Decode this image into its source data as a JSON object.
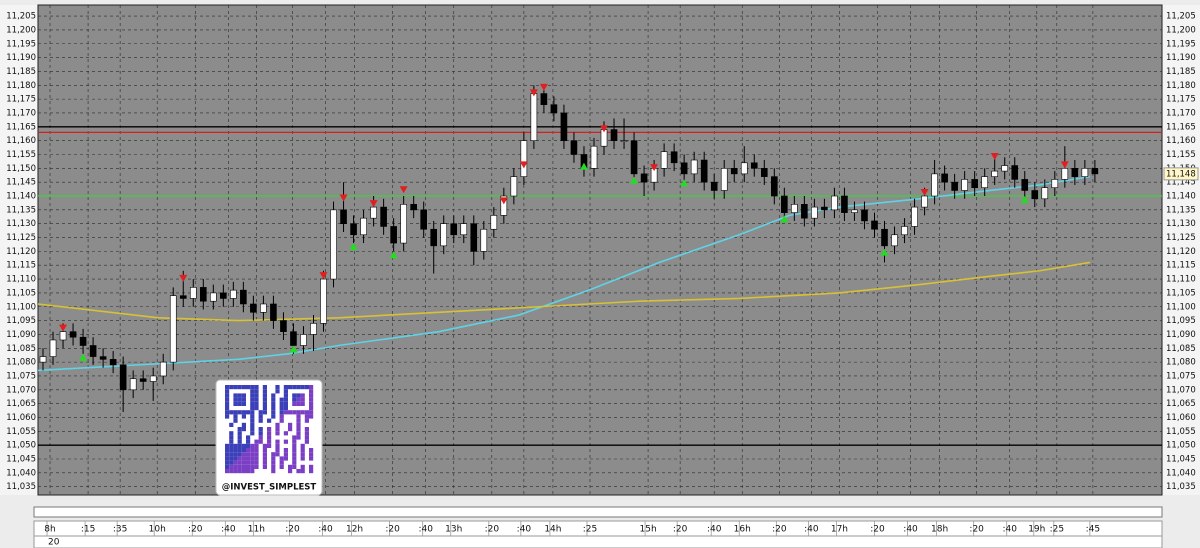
{
  "chart_data": {
    "type": "candlestick",
    "background": "#8c8c8c",
    "up_color": "#ffffff",
    "down_color": "#000000",
    "grid": true,
    "xlim": [
      0,
      112.2
    ],
    "ylim": [
      11032,
      11209
    ],
    "x": [
      0,
      1,
      2,
      3,
      4,
      5,
      6,
      7,
      8,
      9,
      10,
      11,
      12,
      13,
      14,
      15,
      16,
      17,
      18,
      19,
      20,
      21,
      22,
      23,
      24,
      25,
      26,
      27,
      28,
      29,
      30,
      31,
      32,
      33,
      34,
      35,
      36,
      37,
      38,
      39,
      40,
      41,
      42,
      43,
      44,
      45,
      46,
      47,
      48,
      49,
      50,
      51,
      52,
      53,
      54,
      55,
      56,
      57,
      58,
      59,
      60,
      61,
      62,
      63,
      64,
      65,
      66,
      67,
      68,
      69,
      70,
      71,
      72,
      73,
      74,
      75,
      76,
      77,
      78,
      79,
      80,
      81,
      82,
      83,
      84,
      85,
      86,
      87,
      88,
      89,
      90,
      91,
      92,
      93,
      94,
      95,
      96,
      97,
      98,
      99,
      100,
      101,
      102,
      103,
      104,
      105
    ],
    "open": [
      11080,
      11082,
      11088,
      11091,
      11089,
      11086,
      11082,
      11081,
      11079,
      11070,
      11074,
      11073,
      11075,
      11080,
      11104,
      11103,
      11107,
      11102,
      11105,
      11103,
      11106,
      11101,
      11098,
      11101,
      11095,
      11091,
      11086,
      11090,
      11094,
      11110,
      11135,
      11130,
      11126,
      11132,
      11136,
      11129,
      11123,
      11137,
      11135,
      11128,
      11122,
      11130,
      11126,
      11130,
      11120,
      11128,
      11133,
      11140,
      11147,
      11160,
      11177,
      11173,
      11170,
      11160,
      11155,
      11150,
      11158,
      11164,
      11160,
      11160,
      11148,
      11145,
      11150,
      11156,
      11152,
      11148,
      11153,
      11145,
      11142,
      11150,
      11148,
      11152,
      11150,
      11147,
      11140,
      11134,
      11137,
      11132,
      11136,
      11135,
      11140,
      11134,
      11135,
      11131,
      11128,
      11122,
      11126,
      11129,
      11136,
      11140,
      11148,
      11145,
      11142,
      11146,
      11143,
      11147,
      11149,
      11151,
      11146,
      11142,
      11139,
      11143,
      11146,
      11150,
      11147,
      11150
    ],
    "high": [
      11085,
      11091,
      11094,
      11094,
      11092,
      11089,
      11085,
      11084,
      11082,
      11077,
      11077,
      11078,
      11083,
      11107,
      11113,
      11110,
      11110,
      11108,
      11108,
      11109,
      11109,
      11104,
      11104,
      11104,
      11098,
      11094,
      11093,
      11097,
      11113,
      11138,
      11145,
      11133,
      11135,
      11140,
      11139,
      11132,
      11140,
      11140,
      11138,
      11131,
      11133,
      11133,
      11133,
      11133,
      11131,
      11136,
      11143,
      11150,
      11163,
      11180,
      11180,
      11176,
      11173,
      11163,
      11158,
      11161,
      11167,
      11168,
      11168,
      11163,
      11151,
      11153,
      11159,
      11159,
      11155,
      11156,
      11156,
      11148,
      11153,
      11153,
      11158,
      11155,
      11153,
      11150,
      11143,
      11140,
      11140,
      11139,
      11139,
      11143,
      11143,
      11138,
      11138,
      11134,
      11131,
      11129,
      11132,
      11139,
      11143,
      11153,
      11151,
      11148,
      11149,
      11149,
      11150,
      11155,
      11154,
      11154,
      11149,
      11145,
      11146,
      11149,
      11158,
      11153,
      11153,
      11153
    ],
    "low": [
      11077,
      11079,
      11085,
      11086,
      11083,
      11079,
      11078,
      11076,
      11062,
      11067,
      11070,
      11066,
      11072,
      11077,
      11100,
      11100,
      11099,
      11099,
      11100,
      11100,
      11098,
      11095,
      11095,
      11092,
      11088,
      11083,
      11083,
      11084,
      11091,
      11107,
      11127,
      11123,
      11123,
      11129,
      11126,
      11120,
      11120,
      11132,
      11125,
      11112,
      11119,
      11123,
      11123,
      11115,
      11117,
      11125,
      11130,
      11137,
      11144,
      11157,
      11170,
      11167,
      11157,
      11152,
      11147,
      11147,
      11155,
      11157,
      11157,
      11145,
      11140,
      11142,
      11147,
      11149,
      11145,
      11145,
      11142,
      11139,
      11139,
      11145,
      11145,
      11147,
      11144,
      11137,
      11131,
      11131,
      11129,
      11129,
      11132,
      11132,
      11131,
      11131,
      11128,
      11125,
      11116,
      11119,
      11123,
      11126,
      11133,
      11137,
      11142,
      11139,
      11139,
      11140,
      11140,
      11144,
      11146,
      11143,
      11139,
      11136,
      11136,
      11140,
      11143,
      11144,
      11144,
      11145
    ],
    "close": [
      11082,
      11088,
      11091,
      11089,
      11086,
      11082,
      11081,
      11079,
      11070,
      11074,
      11073,
      11075,
      11080,
      11104,
      11103,
      11107,
      11102,
      11105,
      11103,
      11106,
      11101,
      11098,
      11101,
      11095,
      11091,
      11086,
      11090,
      11094,
      11110,
      11135,
      11130,
      11126,
      11132,
      11136,
      11129,
      11123,
      11137,
      11135,
      11128,
      11122,
      11130,
      11126,
      11130,
      11120,
      11128,
      11133,
      11140,
      11147,
      11160,
      11177,
      11173,
      11170,
      11160,
      11155,
      11150,
      11158,
      11164,
      11160,
      11160,
      11148,
      11145,
      11150,
      11156,
      11152,
      11148,
      11153,
      11145,
      11142,
      11150,
      11148,
      11152,
      11150,
      11147,
      11140,
      11134,
      11137,
      11132,
      11136,
      11135,
      11140,
      11134,
      11135,
      11131,
      11128,
      11122,
      11126,
      11129,
      11136,
      11140,
      11148,
      11145,
      11142,
      11146,
      11143,
      11147,
      11149,
      11151,
      11146,
      11142,
      11139,
      11143,
      11146,
      11150,
      11147,
      11150,
      11148
    ],
    "moving_averages": [
      {
        "color": "#5fd3e6",
        "x": [
          0,
          10,
          20,
          25,
          30,
          40,
          48,
          55,
          62,
          70,
          75,
          80,
          88,
          95,
          100,
          105
        ],
        "values": [
          11077,
          11079,
          11081,
          11083,
          11086,
          11091,
          11097,
          11106,
          11116,
          11126,
          11133,
          11136,
          11139,
          11142,
          11144,
          11147
        ]
      },
      {
        "color": "#d8c234",
        "x": [
          0,
          12,
          20,
          30,
          40,
          50,
          60,
          70,
          80,
          88,
          95,
          100,
          105
        ],
        "values": [
          11101,
          11096,
          11095,
          11096,
          11098,
          11100,
          11102,
          11103,
          11105,
          11108,
          11111,
          11113,
          11116
        ]
      }
    ],
    "levels": [
      {
        "value": 11165,
        "color": "#000000"
      },
      {
        "value": 11163,
        "color": "#d42020"
      },
      {
        "value": 11140,
        "color": "#3fcf3f"
      },
      {
        "value": 11050,
        "color": "#000000"
      }
    ],
    "sell_signals": {
      "color": "#e02020",
      "x": [
        2,
        14,
        28,
        30,
        33,
        36,
        46,
        48,
        49,
        50,
        56,
        61,
        88,
        95,
        102
      ],
      "values": [
        11091,
        11109,
        11110,
        11138,
        11136,
        11141,
        11137,
        11150,
        11176,
        11178,
        11163,
        11149,
        11140,
        11153,
        11150
      ]
    },
    "buy_signals": {
      "color": "#22dd22",
      "x": [
        4,
        25,
        31,
        35,
        54,
        59,
        64,
        74,
        84,
        98
      ],
      "values": [
        11083,
        11086,
        11123,
        11120,
        11152,
        11147,
        11146,
        11133,
        11121,
        11140
      ]
    },
    "last_price": {
      "value": 11148,
      "label": "11,148"
    },
    "xticks": [
      {
        "value": 1.2,
        "label": "8h"
      },
      {
        "value": 5,
        "label": ":15"
      },
      {
        "value": 8.2,
        "label": ":35"
      },
      {
        "value": 11.9,
        "label": "10h"
      },
      {
        "value": 15.7,
        "label": ":20"
      },
      {
        "value": 19,
        "label": ":40"
      },
      {
        "value": 21.8,
        "label": "11h"
      },
      {
        "value": 25.4,
        "label": ":20"
      },
      {
        "value": 28.7,
        "label": ":40"
      },
      {
        "value": 31.6,
        "label": "12h"
      },
      {
        "value": 35.4,
        "label": ":20"
      },
      {
        "value": 38.7,
        "label": ":40"
      },
      {
        "value": 41.5,
        "label": "13h"
      },
      {
        "value": 45.3,
        "label": ":20"
      },
      {
        "value": 48.5,
        "label": ":40"
      },
      {
        "value": 51.4,
        "label": "14h"
      },
      {
        "value": 55.1,
        "label": ":25"
      },
      {
        "value": 60.9,
        "label": "15h"
      },
      {
        "value": 64.1,
        "label": ":20"
      },
      {
        "value": 67.5,
        "label": ":40"
      },
      {
        "value": 70.3,
        "label": "16h"
      },
      {
        "value": 74,
        "label": ":20"
      },
      {
        "value": 77.2,
        "label": ":40"
      },
      {
        "value": 80,
        "label": "17h"
      },
      {
        "value": 83.8,
        "label": ":20"
      },
      {
        "value": 87.1,
        "label": ":40"
      },
      {
        "value": 90,
        "label": "18h"
      },
      {
        "value": 93.7,
        "label": ":20"
      },
      {
        "value": 97,
        "label": ":40"
      },
      {
        "value": 99.7,
        "label": "19h"
      },
      {
        "value": 101.7,
        "label": ":25"
      },
      {
        "value": 105.3,
        "label": ":45"
      }
    ],
    "x_sub_label": "20",
    "yticks": [
      {
        "value": 11035,
        "label": "11,035"
      },
      {
        "value": 11040,
        "label": "11,040"
      },
      {
        "value": 11045,
        "label": "11,045"
      },
      {
        "value": 11050,
        "label": "11,050"
      },
      {
        "value": 11055,
        "label": "11,055"
      },
      {
        "value": 11060,
        "label": "11,060"
      },
      {
        "value": 11065,
        "label": "11,065"
      },
      {
        "value": 11070,
        "label": "11,070"
      },
      {
        "value": 11075,
        "label": "11,075"
      },
      {
        "value": 11080,
        "label": "11,080"
      },
      {
        "value": 11085,
        "label": "11,085"
      },
      {
        "value": 11090,
        "label": "11,090"
      },
      {
        "value": 11095,
        "label": "11,095"
      },
      {
        "value": 11100,
        "label": "11,100"
      },
      {
        "value": 11105,
        "label": "11,105"
      },
      {
        "value": 11110,
        "label": "11,110"
      },
      {
        "value": 11115,
        "label": "11,115"
      },
      {
        "value": 11120,
        "label": "11,120"
      },
      {
        "value": 11125,
        "label": "11,125"
      },
      {
        "value": 11130,
        "label": "11,130"
      },
      {
        "value": 11135,
        "label": "11,135"
      },
      {
        "value": 11140,
        "label": "11,140"
      },
      {
        "value": 11145,
        "label": "11,145"
      },
      {
        "value": 11150,
        "label": "11,150"
      },
      {
        "value": 11155,
        "label": "11,155"
      },
      {
        "value": 11160,
        "label": "11,160"
      },
      {
        "value": 11165,
        "label": "11,165"
      },
      {
        "value": 11170,
        "label": "11,170"
      },
      {
        "value": 11175,
        "label": "11,175"
      },
      {
        "value": 11180,
        "label": "11,180"
      },
      {
        "value": 11185,
        "label": "11,185"
      },
      {
        "value": 11190,
        "label": "11,190"
      },
      {
        "value": 11195,
        "label": "11,195"
      },
      {
        "value": 11200,
        "label": "11,200"
      },
      {
        "value": 11205,
        "label": "11,205"
      }
    ],
    "watermark": "@INVEST_SIMPLEST"
  }
}
